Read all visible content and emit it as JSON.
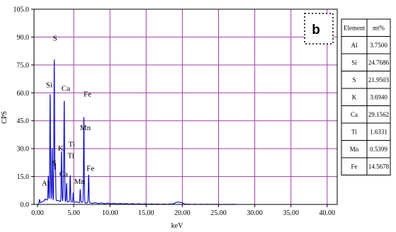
{
  "chart_data": {
    "type": "line",
    "title": "",
    "xlabel": "keV",
    "ylabel": "CPS",
    "panel_label": "b",
    "xlim": [
      0,
      41
    ],
    "ylim": [
      0,
      105
    ],
    "x_ticks": [
      "0.00",
      "5.00",
      "10.00",
      "15.00",
      "20.00",
      "25.00",
      "30.00",
      "35.00",
      "40.00"
    ],
    "y_ticks": [
      "0.0",
      "15.0",
      "30.0",
      "45.0",
      "60.0",
      "75.0",
      "90.0",
      "105.0"
    ],
    "grid": true,
    "colors": {
      "spectrum": "#1818c8",
      "grid": "#a040a0",
      "axis": "#000000"
    },
    "spectrum_peaks": [
      {
        "x": 0.28,
        "y": 2
      },
      {
        "x": 1.49,
        "y": 13
      },
      {
        "x": 1.74,
        "y": 57
      },
      {
        "x": 2.02,
        "y": 28
      },
      {
        "x": 2.31,
        "y": 76
      },
      {
        "x": 2.46,
        "y": 20
      },
      {
        "x": 3.31,
        "y": 27
      },
      {
        "x": 3.59,
        "y": 11
      },
      {
        "x": 3.69,
        "y": 53
      },
      {
        "x": 4.01,
        "y": 10
      },
      {
        "x": 4.51,
        "y": 14
      },
      {
        "x": 4.93,
        "y": 5
      },
      {
        "x": 5.9,
        "y": 7
      },
      {
        "x": 6.4,
        "y": 46
      },
      {
        "x": 7.06,
        "y": 15
      },
      {
        "x": 19.5,
        "y": 1.2
      }
    ],
    "peak_labels": [
      {
        "text": "S",
        "x": 2.4,
        "y": 88
      },
      {
        "text": "Si",
        "x": 1.6,
        "y": 63
      },
      {
        "text": "Ca",
        "x": 3.9,
        "y": 61
      },
      {
        "text": "Fe",
        "x": 6.9,
        "y": 58
      },
      {
        "text": "Mn",
        "x": 6.6,
        "y": 40
      },
      {
        "text": "K",
        "x": 3.2,
        "y": 29
      },
      {
        "text": "Ti",
        "x": 4.7,
        "y": 31
      },
      {
        "text": "Ti",
        "x": 4.6,
        "y": 25
      },
      {
        "text": "S",
        "x": 2.3,
        "y": 21
      },
      {
        "text": "Al",
        "x": 1.1,
        "y": 10
      },
      {
        "text": "Ca",
        "x": 3.6,
        "y": 15
      },
      {
        "text": "Mn",
        "x": 5.8,
        "y": 11
      },
      {
        "text": "Fe",
        "x": 7.3,
        "y": 18
      }
    ]
  },
  "table": {
    "headers": [
      "Element",
      "mt%"
    ],
    "rows": [
      [
        "Al",
        "3.7500"
      ],
      [
        "Si",
        "24.7686"
      ],
      [
        "S",
        "21.9503"
      ],
      [
        "K",
        "3.6940"
      ],
      [
        "Ca",
        "29.1562"
      ],
      [
        "Ti",
        "1.6331"
      ],
      [
        "Mn",
        "0.5399"
      ],
      [
        "Fe",
        "14.5678"
      ]
    ]
  }
}
